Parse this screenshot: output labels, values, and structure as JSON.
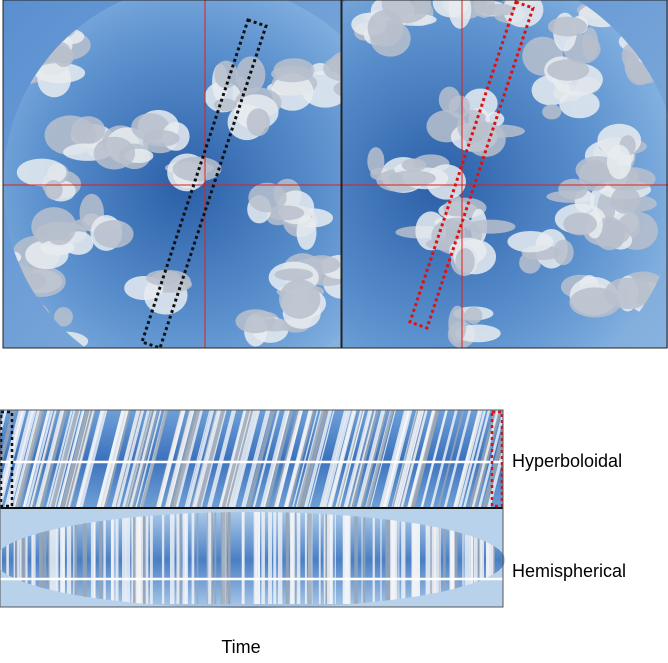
{
  "labels": {
    "rows": [
      "Hyperboloidal",
      "Hemispherical"
    ],
    "x_axis": "Time"
  }
}
